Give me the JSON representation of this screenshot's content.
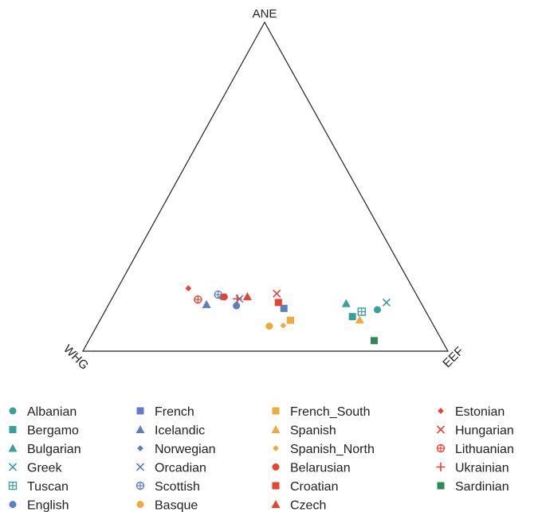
{
  "chart_data": {
    "type": "ternary-scatter",
    "vertices": {
      "top": "ANE",
      "left": "WHG",
      "right": "EEF"
    },
    "legend_placement": "bottom",
    "series": [
      {
        "name": "Albanian",
        "marker": "circle",
        "color": "#3a9e9e",
        "points": [
          {
            "ANE": 0.126,
            "WHG": 0.13,
            "EEF": 0.744
          }
        ]
      },
      {
        "name": "Bergamo",
        "marker": "square",
        "color": "#3a9e9e",
        "points": [
          {
            "ANE": 0.105,
            "WHG": 0.209,
            "EEF": 0.686
          }
        ]
      },
      {
        "name": "Bulgarian",
        "marker": "triangle",
        "color": "#3a9e9e",
        "points": [
          {
            "ANE": 0.145,
            "WHG": 0.206,
            "EEF": 0.649
          }
        ]
      },
      {
        "name": "Greek",
        "marker": "x",
        "color": "#3a9e9e",
        "points": [
          {
            "ANE": 0.148,
            "WHG": 0.094,
            "EEF": 0.758
          }
        ]
      },
      {
        "name": "Tuscan",
        "marker": "square-plus",
        "color": "#3a9e9e",
        "points": [
          {
            "ANE": 0.12,
            "WHG": 0.176,
            "EEF": 0.704
          }
        ]
      },
      {
        "name": "English",
        "marker": "circle",
        "color": "#5b7fc4",
        "points": [
          {
            "ANE": 0.138,
            "WHG": 0.51,
            "EEF": 0.352
          }
        ]
      },
      {
        "name": "French",
        "marker": "square",
        "color": "#5b7fc4",
        "points": [
          {
            "ANE": 0.13,
            "WHG": 0.384,
            "EEF": 0.486
          }
        ]
      },
      {
        "name": "Icelandic",
        "marker": "triangle",
        "color": "#5b7fc4",
        "points": [
          {
            "ANE": 0.142,
            "WHG": 0.59,
            "EEF": 0.268
          }
        ]
      },
      {
        "name": "Norwegian",
        "marker": "diamond",
        "color": "#5b7fc4",
        "points": [
          {
            "ANE": 0.163,
            "WHG": 0.539,
            "EEF": 0.298
          }
        ]
      },
      {
        "name": "Orcadian",
        "marker": "x",
        "color": "#5b7fc4",
        "points": [
          {
            "ANE": 0.159,
            "WHG": 0.491,
            "EEF": 0.35
          }
        ]
      },
      {
        "name": "Scottish",
        "marker": "circle-plus",
        "color": "#5b7fc4",
        "points": [
          {
            "ANE": 0.172,
            "WHG": 0.543,
            "EEF": 0.285
          }
        ]
      },
      {
        "name": "Basque",
        "marker": "circle",
        "color": "#f2a93b",
        "points": [
          {
            "ANE": 0.076,
            "WHG": 0.451,
            "EEF": 0.473
          }
        ]
      },
      {
        "name": "French_South",
        "marker": "square",
        "color": "#f2a93b",
        "points": [
          {
            "ANE": 0.094,
            "WHG": 0.384,
            "EEF": 0.522
          }
        ]
      },
      {
        "name": "Spanish",
        "marker": "triangle",
        "color": "#f2a93b",
        "points": [
          {
            "ANE": 0.095,
            "WHG": 0.194,
            "EEF": 0.711
          }
        ]
      },
      {
        "name": "Spanish_North",
        "marker": "diamond",
        "color": "#f2a93b",
        "points": [
          {
            "ANE": 0.078,
            "WHG": 0.412,
            "EEF": 0.51
          }
        ]
      },
      {
        "name": "Belarusian",
        "marker": "circle",
        "color": "#e5452f",
        "points": [
          {
            "ANE": 0.165,
            "WHG": 0.53,
            "EEF": 0.305
          }
        ]
      },
      {
        "name": "Croatian",
        "marker": "square",
        "color": "#e5452f",
        "points": [
          {
            "ANE": 0.148,
            "WHG": 0.39,
            "EEF": 0.462
          }
        ]
      },
      {
        "name": "Czech",
        "marker": "triangle",
        "color": "#e5452f",
        "points": [
          {
            "ANE": 0.166,
            "WHG": 0.466,
            "EEF": 0.368
          }
        ]
      },
      {
        "name": "Estonian",
        "marker": "diamond",
        "color": "#e5452f",
        "points": [
          {
            "ANE": 0.191,
            "WHG": 0.615,
            "EEF": 0.194
          }
        ]
      },
      {
        "name": "Hungarian",
        "marker": "x",
        "color": "#e5452f",
        "points": [
          {
            "ANE": 0.175,
            "WHG": 0.381,
            "EEF": 0.444
          }
        ]
      },
      {
        "name": "Lithuanian",
        "marker": "circle-plus",
        "color": "#e5452f",
        "points": [
          {
            "ANE": 0.157,
            "WHG": 0.606,
            "EEF": 0.237
          }
        ]
      },
      {
        "name": "Ukrainian",
        "marker": "plus",
        "color": "#e5452f",
        "points": [
          {
            "ANE": 0.159,
            "WHG": 0.497,
            "EEF": 0.344
          }
        ]
      },
      {
        "name": "Sardinian",
        "marker": "square",
        "color": "#2e8b57",
        "points": [
          {
            "ANE": 0.032,
            "WHG": 0.186,
            "EEF": 0.782
          }
        ]
      }
    ]
  }
}
